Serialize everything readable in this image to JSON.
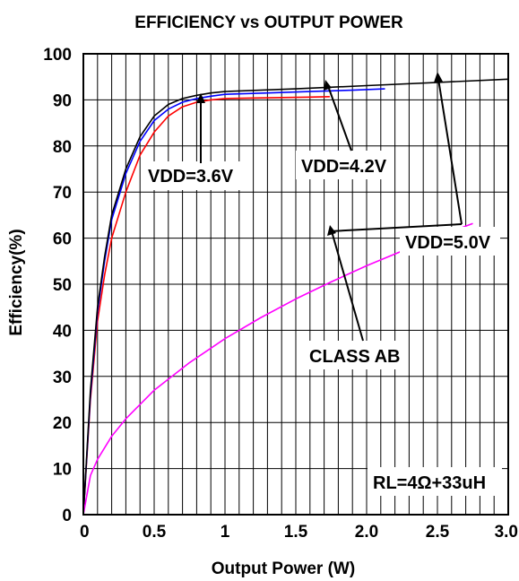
{
  "chart_data": {
    "type": "line",
    "title": "EFFICIENCY vs OUTPUT POWER",
    "xlabel": "Output Power (W)",
    "ylabel": "Efficiency(%)",
    "xlim": [
      0,
      3.0
    ],
    "ylim": [
      0,
      100
    ],
    "grid": true,
    "xticks": [
      "0",
      "0.5",
      "1",
      "1.5",
      "2.0",
      "2.5",
      "3.0"
    ],
    "yticks": [
      "0",
      "10",
      "20",
      "30",
      "40",
      "50",
      "60",
      "70",
      "80",
      "90",
      "100"
    ],
    "series": [
      {
        "name": "VDD=3.6V",
        "color": "#ff0000",
        "x": [
          0,
          0.05,
          0.1,
          0.15,
          0.2,
          0.3,
          0.4,
          0.5,
          0.6,
          0.7,
          0.8,
          0.9,
          1.0,
          1.2,
          1.4,
          1.6,
          1.74
        ],
        "y": [
          0,
          25,
          42,
          52,
          60,
          70,
          78,
          83,
          86.5,
          88.5,
          89.5,
          90,
          90.3,
          90.4,
          90.5,
          90.6,
          90.7
        ]
      },
      {
        "name": "VDD=4.2V",
        "color": "#0000ff",
        "x": [
          0,
          0.05,
          0.1,
          0.15,
          0.2,
          0.3,
          0.4,
          0.5,
          0.6,
          0.7,
          0.8,
          0.9,
          1.0,
          1.3,
          1.6,
          1.9,
          2.13
        ],
        "y": [
          0,
          26,
          44,
          55,
          64,
          74,
          81,
          85.5,
          88,
          89.5,
          90.3,
          90.8,
          91.2,
          91.5,
          91.8,
          92.1,
          92.4
        ]
      },
      {
        "name": "VDD=5.0V",
        "color": "#000000",
        "x": [
          0,
          0.05,
          0.1,
          0.15,
          0.2,
          0.3,
          0.4,
          0.5,
          0.6,
          0.7,
          0.8,
          0.9,
          1.0,
          1.5,
          2.0,
          2.5,
          3.0
        ],
        "y": [
          0,
          27,
          45,
          56,
          65,
          75,
          82,
          86.5,
          89,
          90.3,
          91,
          91.5,
          91.8,
          92.4,
          93.1,
          93.8,
          94.5
        ]
      },
      {
        "name": "CLASS AB",
        "color": "#ff00ff",
        "x": [
          0,
          0.05,
          0.1,
          0.2,
          0.3,
          0.5,
          0.75,
          1.0,
          1.25,
          1.5,
          1.75,
          2.0,
          2.25,
          2.5,
          2.75
        ],
        "y": [
          0,
          8.5,
          12,
          17,
          20.8,
          27,
          33,
          38.2,
          42.7,
          46.8,
          50.5,
          54,
          57.2,
          60.3,
          63.2
        ]
      }
    ],
    "annotations": {
      "vdd36": "VDD=3.6V",
      "vdd42": "VDD=4.2V",
      "vdd50": "VDD=5.0V",
      "classab": "CLASS AB",
      "load": "RL=4Ω+33uH"
    }
  }
}
